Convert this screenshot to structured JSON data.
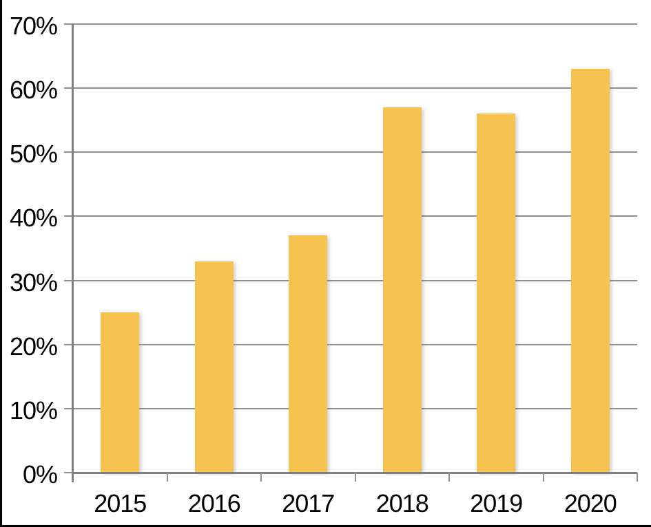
{
  "chart_data": {
    "type": "bar",
    "categories": [
      "2015",
      "2016",
      "2017",
      "2018",
      "2019",
      "2020"
    ],
    "values": [
      25,
      33,
      37,
      57,
      56,
      63
    ],
    "value_unit": "%",
    "title": "",
    "xlabel": "",
    "ylabel": "",
    "ylim": [
      0,
      70
    ],
    "ytick_step": 10,
    "ytick_labels": [
      "0%",
      "10%",
      "20%",
      "30%",
      "40%",
      "50%",
      "60%",
      "70%"
    ],
    "grid": true,
    "legend": false,
    "colors": {
      "bar": "#F6C350",
      "gridline": "#8F8F8F",
      "axis": "#808080",
      "text": "#000000",
      "background": "#FFFFFF",
      "frame": "#000000"
    }
  }
}
